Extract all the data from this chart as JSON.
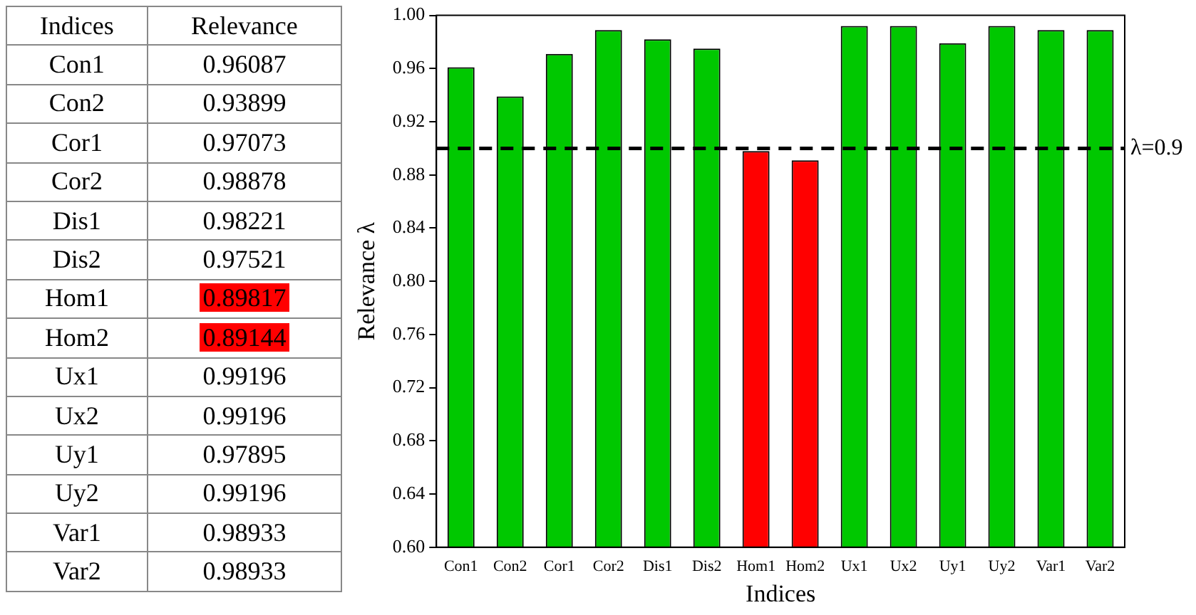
{
  "chart_data": [
    {
      "type": "other",
      "annotations": [
        "Indices",
        "Relevance",
        "Con1",
        "0.96087",
        "Con2",
        "0.93899",
        "Cor1",
        "0.97073",
        "Cor2",
        "0.98878",
        "Dis1",
        "0.98221",
        "Dis2",
        "0.97521",
        "Hom1",
        "0.89817",
        "Hom2",
        "0.89144",
        "Ux1",
        "0.99196",
        "Ux2",
        "0.99196",
        "Uy1",
        "0.97895",
        "Uy2",
        "0.99196",
        "Var1",
        "0.98933",
        "Var2",
        "0.98933"
      ],
      "colors": [
        null,
        null,
        null,
        null,
        null,
        null,
        "#ff0000",
        "#ff0000",
        null,
        null,
        null,
        null,
        null,
        null
      ]
    },
    {
      "type": "bar",
      "xlabel": "Indices",
      "ylabel": "Relevance λ",
      "categories": [
        "Con1",
        "Con2",
        "Cor1",
        "Cor2",
        "Dis1",
        "Dis2",
        "Hom1",
        "Hom2",
        "Ux1",
        "Ux2",
        "Uy1",
        "Uy2",
        "Var1",
        "Var2"
      ],
      "values": [
        0.961,
        0.939,
        0.971,
        0.989,
        0.982,
        0.975,
        0.898,
        0.891,
        0.992,
        0.992,
        0.979,
        0.992,
        0.989,
        0.989
      ],
      "colors": [
        "#00c800",
        "#00c800",
        "#00c800",
        "#00c800",
        "#00c800",
        "#00c800",
        "#ff0000",
        "#ff0000",
        "#00c800",
        "#00c800",
        "#00c800",
        "#00c800",
        "#00c800",
        "#00c800"
      ],
      "ylim": [
        0.6,
        1.0
      ],
      "yticks": [
        {
          "value": 0.6,
          "label": "0.60"
        },
        {
          "value": 0.64,
          "label": "0.64"
        },
        {
          "value": 0.68,
          "label": "0.68"
        },
        {
          "value": 0.72,
          "label": "0.72"
        },
        {
          "value": 0.76,
          "label": "0.76"
        },
        {
          "value": 0.8,
          "label": "0.80"
        },
        {
          "value": 0.84,
          "label": "0.84"
        },
        {
          "value": 0.88,
          "label": "0.88"
        },
        {
          "value": 0.92,
          "label": "0.92"
        },
        {
          "value": 0.96,
          "label": "0.96"
        },
        {
          "value": 1.0,
          "label": "1.00"
        }
      ],
      "ref_lines": [
        {
          "axis": "y",
          "value": 0.9,
          "label": "λ=0.9",
          "color": "#000000",
          "line_style": "dashed"
        }
      ],
      "grid": false,
      "legend": false
    }
  ]
}
